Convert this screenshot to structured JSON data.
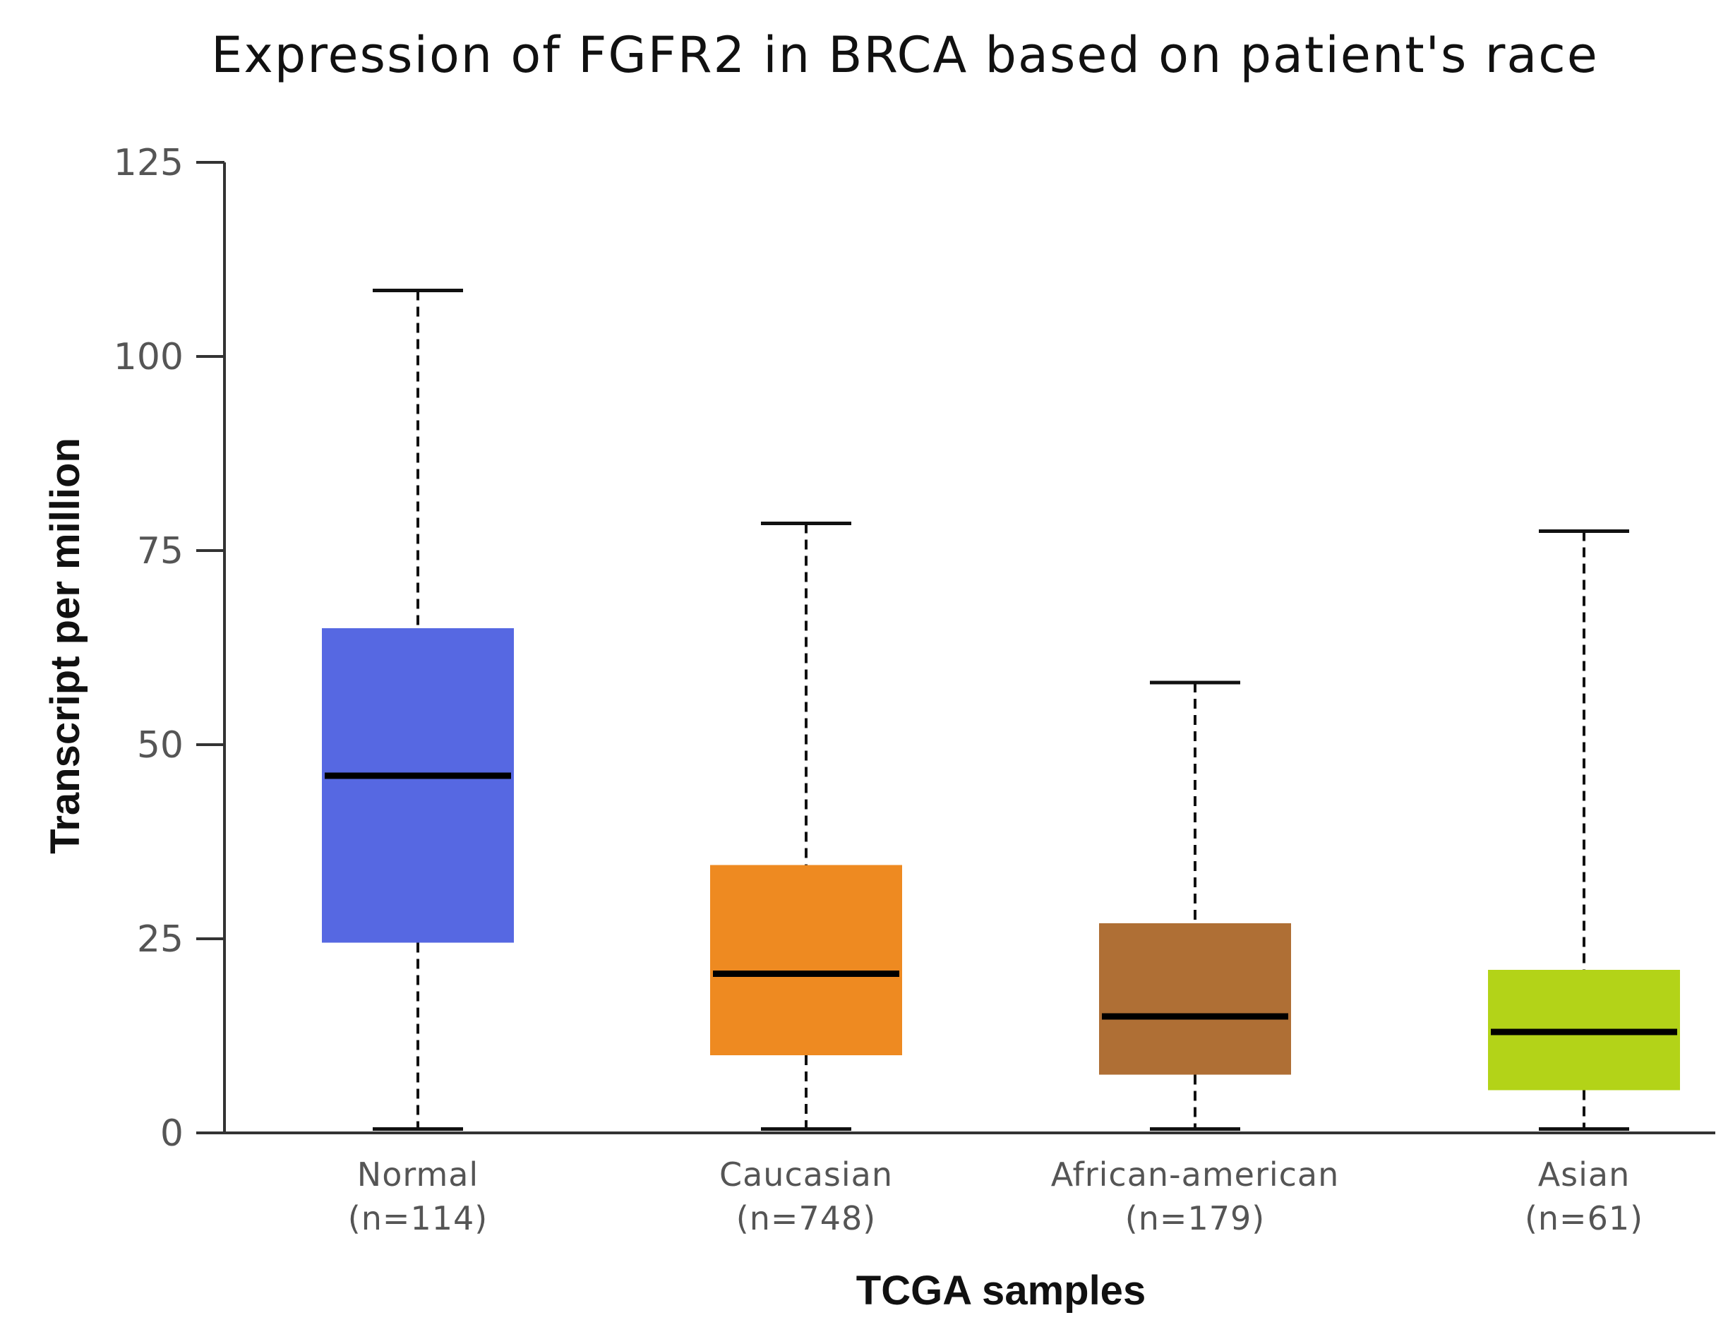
{
  "chart_data": {
    "type": "box",
    "title": "Expression of FGFR2 in BRCA based on patient's race",
    "xlabel": "TCGA samples",
    "ylabel": "Transcript per million",
    "ylim": [
      0,
      125
    ],
    "yticks": [
      0,
      25,
      50,
      75,
      100,
      125
    ],
    "grid": false,
    "groups": [
      {
        "name": "Normal",
        "n_label": "(n=114)",
        "color": "#5668E2",
        "min": 0.5,
        "q1": 24.5,
        "median": 46,
        "q3": 65,
        "max": 108.5
      },
      {
        "name": "Caucasian",
        "n_label": "(n=748)",
        "color": "#EE8A21",
        "min": 0.5,
        "q1": 10,
        "median": 20.5,
        "q3": 34.5,
        "max": 78.5
      },
      {
        "name": "African-american",
        "n_label": "(n=179)",
        "color": "#AF6F35",
        "min": 0.5,
        "q1": 7.5,
        "median": 15,
        "q3": 27,
        "max": 58
      },
      {
        "name": "Asian",
        "n_label": "(n=61)",
        "color": "#B3D318",
        "min": 0.5,
        "q1": 5.5,
        "median": 13,
        "q3": 21,
        "max": 77.5
      }
    ]
  }
}
